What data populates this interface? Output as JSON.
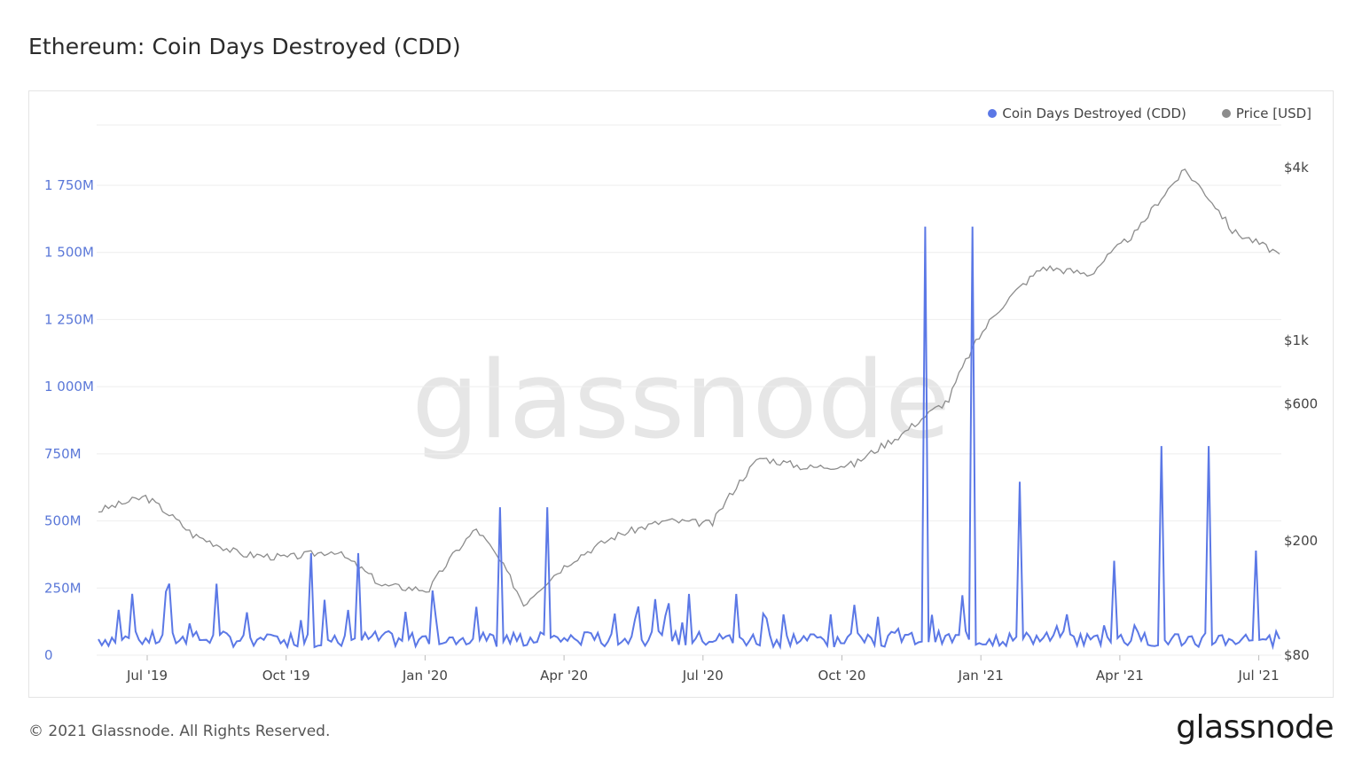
{
  "title": "Ethereum: Coin Days Destroyed (CDD)",
  "footer": {
    "copyright": "© 2021 Glassnode. All Rights Reserved.",
    "brand": "glassnode"
  },
  "watermark": "glassnode",
  "colors": {
    "cdd": "#5b78e6",
    "price": "#8c8c8c",
    "grid": "#eeeeee"
  },
  "chart_data": {
    "type": "line",
    "title": "Ethereum: Coin Days Destroyed (CDD)",
    "legend": {
      "placement": "top-right",
      "entries": [
        "Coin Days Destroyed (CDD)",
        "Price [USD]"
      ]
    },
    "grid": true,
    "x_ticks": [
      "Jul '19",
      "Oct '19",
      "Jan '20",
      "Apr '20",
      "Jul '20",
      "Oct '20",
      "Jan '21",
      "Apr '21",
      "Jul '21"
    ],
    "y_left": {
      "ticks": [
        "0",
        "250M",
        "500M",
        "750M",
        "1 000M",
        "1 250M",
        "1 500M",
        "1 750M"
      ],
      "ylim": [
        0,
        1750
      ],
      "unit": "M"
    },
    "y_right": {
      "scale": "log",
      "ticks": [
        "$80",
        "$200",
        "$600",
        "$1k",
        "$4k"
      ],
      "tick_values": [
        80,
        200,
        600,
        1000,
        4000
      ],
      "ylim": [
        80,
        4000
      ]
    },
    "series": [
      {
        "name": "Coin Days Destroyed (CDD)",
        "axis": "left",
        "points": [
          [
            "Jun '19",
            40
          ],
          [
            "Jul '19",
            60
          ],
          [
            "Aug '19",
            280
          ],
          [
            "Sep '19",
            50
          ],
          [
            "Oct '19",
            60
          ],
          [
            "Nov '19",
            400
          ],
          [
            "Dec '19",
            170
          ],
          [
            "Jan '20",
            40
          ],
          [
            "Feb '20",
            70
          ],
          [
            "Mar '20",
            580
          ],
          [
            "Apr '20",
            50
          ],
          [
            "May '20",
            60
          ],
          [
            "Jun '20",
            60
          ],
          [
            "Jul '20",
            240
          ],
          [
            "Aug '20",
            60
          ],
          [
            "Sep '20",
            160
          ],
          [
            "Oct '20",
            150
          ],
          [
            "Nov '20",
            120
          ],
          [
            "Dec '20",
            1680
          ],
          [
            "Jan '21",
            680
          ],
          [
            "Feb '21",
            160
          ],
          [
            "Mar '21",
            110
          ],
          [
            "Apr '21",
            370
          ],
          [
            "May '21",
            820
          ],
          [
            "Jun '21",
            410
          ],
          [
            "Jul '21",
            60
          ]
        ]
      },
      {
        "name": "Price [USD]",
        "axis": "right",
        "points": [
          [
            "Jun '19",
            255
          ],
          [
            "Jul '19",
            285
          ],
          [
            "Aug '19",
            210
          ],
          [
            "Sep '19",
            180
          ],
          [
            "Oct '19",
            175
          ],
          [
            "Nov '19",
            185
          ],
          [
            "Dec '19",
            140
          ],
          [
            "Jan '20",
            135
          ],
          [
            "Feb '20",
            220
          ],
          [
            "Mar '20",
            120
          ],
          [
            "Apr '20",
            170
          ],
          [
            "May '20",
            210
          ],
          [
            "Jun '20",
            235
          ],
          [
            "Jul '20",
            230
          ],
          [
            "Aug '20",
            390
          ],
          [
            "Sep '20",
            360
          ],
          [
            "Oct '20",
            370
          ],
          [
            "Nov '20",
            470
          ],
          [
            "Dec '20",
            620
          ],
          [
            "Jan '21",
            1250
          ],
          [
            "Feb '21",
            1800
          ],
          [
            "Mar '21",
            1700
          ],
          [
            "Apr '21",
            2400
          ],
          [
            "May '21",
            3900
          ],
          [
            "Jun '21",
            2400
          ],
          [
            "Jul '21",
            2000
          ]
        ]
      }
    ]
  }
}
